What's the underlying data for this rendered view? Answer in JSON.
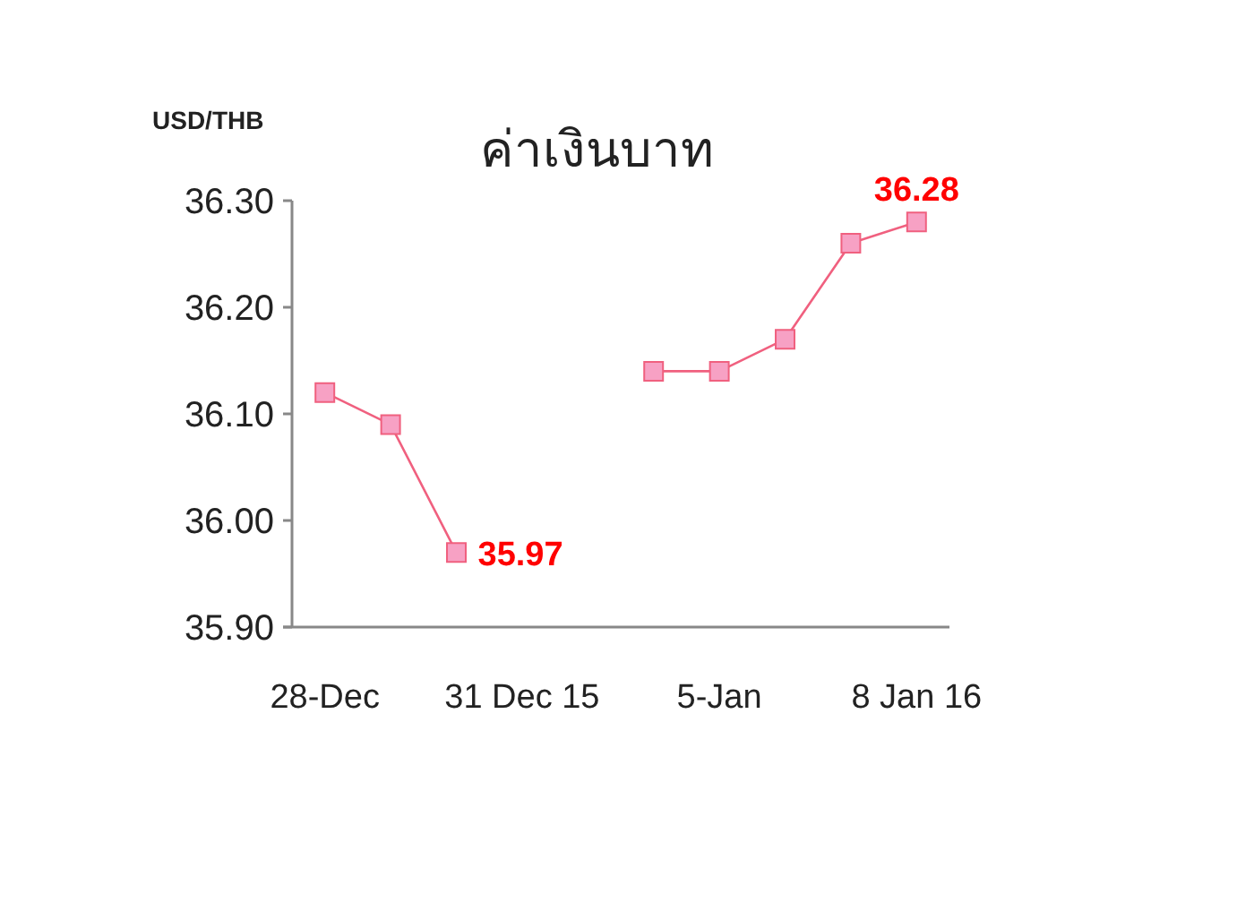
{
  "chart_data": {
    "type": "line",
    "title": "ค่าเงินบาท",
    "ylabel": "USD/THB",
    "categories": [
      "28-Dec",
      null,
      null,
      "31 Dec 15",
      null,
      null,
      "5-Jan",
      null,
      null,
      "8 Jan 16"
    ],
    "series": [
      {
        "color": "#f0607f",
        "values": [
          36.12,
          36.09,
          35.97,
          null,
          null,
          36.14,
          36.14,
          36.17,
          36.26,
          36.28
        ],
        "value_labels": [
          null,
          null,
          "35.97",
          null,
          null,
          null,
          null,
          null,
          null,
          "36.28"
        ]
      }
    ],
    "ylim": [
      35.9,
      36.3
    ],
    "yticks": [
      {
        "value": 35.9,
        "label": "35.90"
      },
      {
        "value": 36,
        "label": "36.00"
      },
      {
        "value": 36.1,
        "label": "36.10"
      },
      {
        "value": 36.2,
        "label": "36.20"
      },
      {
        "value": 36.3,
        "label": "36.30"
      }
    ],
    "marker": "square"
  }
}
